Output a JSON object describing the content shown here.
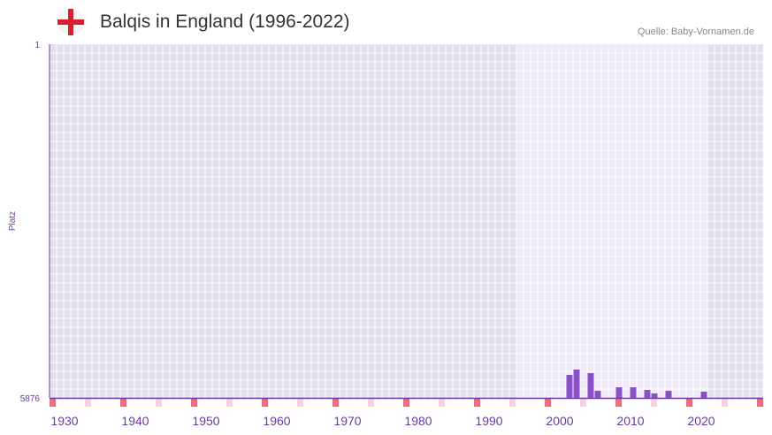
{
  "header": {
    "title": "Balqis in England (1996-2022)",
    "source": "Quelle: Baby-Vornamen.de",
    "flag_icon": "england-flag-icon"
  },
  "colors": {
    "bar": "#8a4fc8",
    "axis": "#6a3aa0",
    "bg": "#e4e0ee",
    "highlight_bg": "#efebf8",
    "marker_red": "#e8707a",
    "marker_pink": "#f4d4dc"
  },
  "chart_data": {
    "type": "bar",
    "title": "Balqis in England (1996-2022)",
    "xlabel": "",
    "ylabel": "Platz",
    "xlim": [
      1928,
      2028
    ],
    "ylim": [
      5876,
      1
    ],
    "y_ticks": [
      "1",
      "5876"
    ],
    "x_ticks": [
      "1930",
      "1940",
      "1950",
      "1960",
      "1970",
      "1980",
      "1990",
      "2000",
      "2010",
      "2020"
    ],
    "highlight_range": [
      1994,
      2020
    ],
    "x": [
      2001,
      2002,
      2004,
      2005,
      2008,
      2010,
      2012,
      2013,
      2015,
      2020
    ],
    "values": [
      5494,
      5406,
      5465,
      5758,
      5700,
      5700,
      5744,
      5803,
      5758,
      5773
    ]
  }
}
